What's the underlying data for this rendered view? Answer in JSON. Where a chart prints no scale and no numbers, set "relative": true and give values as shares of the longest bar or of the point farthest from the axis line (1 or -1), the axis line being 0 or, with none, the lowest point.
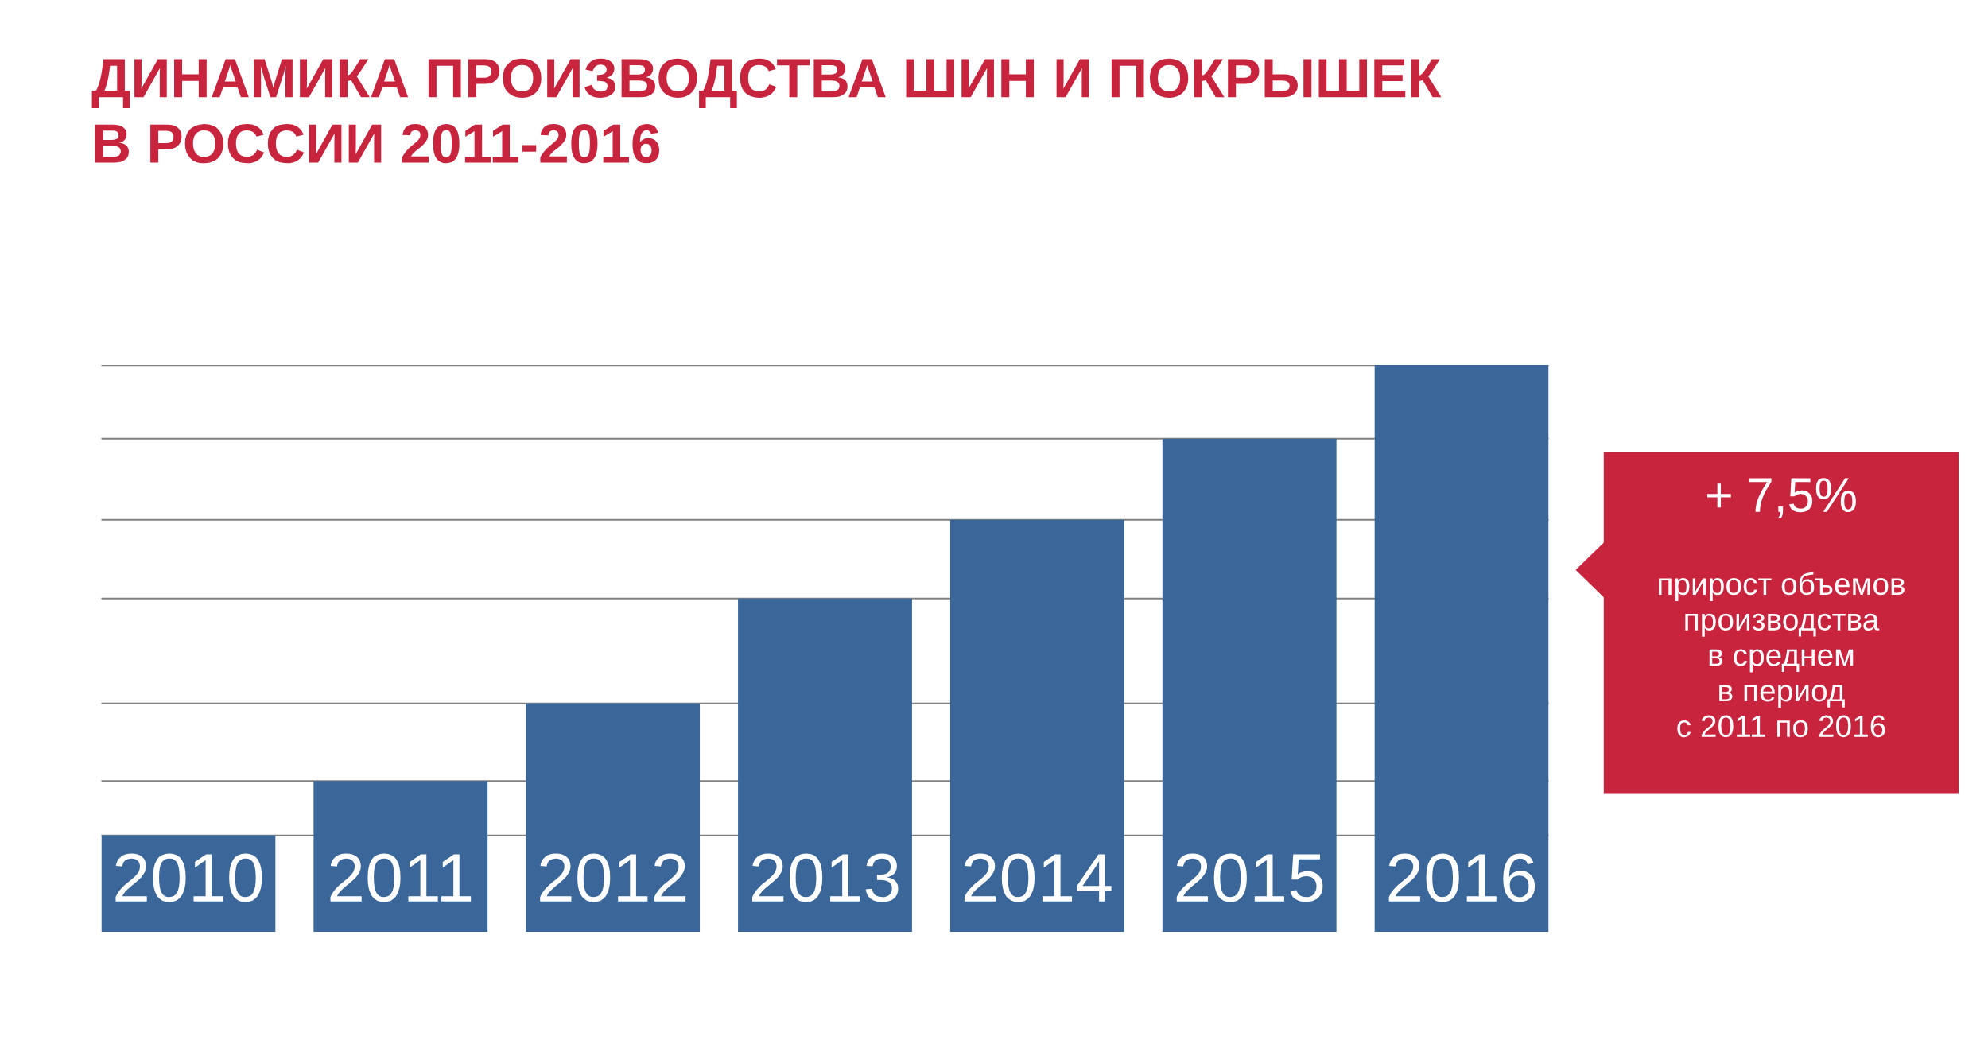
{
  "chart_data": {
    "type": "bar",
    "title": "ДИНАМИКА ПРОИЗВОДСТВА ШИН И ПОКРЫШЕК\nВ РОССИИ 2011-2016",
    "categories": [
      "2010",
      "2011",
      "2012",
      "2013",
      "2014",
      "2015",
      "2016"
    ],
    "values": [
      0.17,
      0.266,
      0.403,
      0.588,
      0.727,
      0.87,
      1
    ],
    "color": "#3a6699",
    "relative": true,
    "ref_lines": [
      {
        "axis": "y",
        "value": 0.17,
        "color": "#808080"
      },
      {
        "axis": "y",
        "value": 0.266,
        "color": "#808080"
      },
      {
        "axis": "y",
        "value": 0.403,
        "color": "#808080"
      },
      {
        "axis": "y",
        "value": 0.588,
        "color": "#808080"
      },
      {
        "axis": "y",
        "value": 0.727,
        "color": "#808080"
      },
      {
        "axis": "y",
        "value": 0.87,
        "color": "#808080"
      },
      {
        "axis": "y",
        "value": 1,
        "color": "#808080"
      }
    ],
    "annotations": [
      "+ 7,5%\nприрост объемов\nпроизводства\nв среднем\nв период\nс 2011 по 2016"
    ]
  }
}
